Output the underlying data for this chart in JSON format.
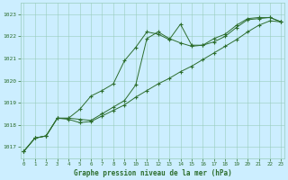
{
  "xlabel": "Graphe pression niveau de la mer (hPa)",
  "ylim": [
    1016.5,
    1023.5
  ],
  "xlim": [
    -0.3,
    23.3
  ],
  "yticks": [
    1017,
    1018,
    1019,
    1020,
    1021,
    1022,
    1023
  ],
  "xticks": [
    0,
    1,
    2,
    3,
    4,
    5,
    6,
    7,
    8,
    9,
    10,
    11,
    12,
    13,
    14,
    15,
    16,
    17,
    18,
    19,
    20,
    21,
    22,
    23
  ],
  "bg_color": "#cceeff",
  "grid_color": "#99ccbb",
  "line_color": "#2d6e2d",
  "series1_x": [
    0,
    1,
    2,
    3,
    4,
    5,
    6,
    7,
    8,
    9,
    10,
    11,
    12,
    13,
    14,
    15,
    16,
    17,
    18,
    19,
    20,
    21,
    22,
    23
  ],
  "series1": [
    1016.8,
    1017.4,
    1017.5,
    1018.3,
    1018.3,
    1018.25,
    1018.2,
    1018.5,
    1018.8,
    1019.1,
    1019.8,
    1021.9,
    1022.2,
    1021.9,
    1021.7,
    1021.55,
    1021.6,
    1021.75,
    1022.0,
    1022.4,
    1022.75,
    1022.8,
    1022.85,
    1022.65
  ],
  "series2": [
    1016.8,
    1017.4,
    1017.5,
    1018.3,
    1018.3,
    1018.7,
    1019.3,
    1019.55,
    1019.85,
    1020.9,
    1021.5,
    1022.2,
    1022.1,
    1021.85,
    1022.55,
    1021.6,
    1021.6,
    1021.9,
    1022.1,
    1022.5,
    1022.8,
    1022.85,
    1022.85,
    1022.65
  ],
  "series3": [
    1016.8,
    1017.4,
    1017.5,
    1018.3,
    1018.25,
    1018.1,
    1018.15,
    1018.4,
    1018.65,
    1018.9,
    1019.25,
    1019.55,
    1019.85,
    1020.1,
    1020.4,
    1020.65,
    1020.95,
    1021.25,
    1021.55,
    1021.85,
    1022.2,
    1022.5,
    1022.7,
    1022.65
  ],
  "figsize": [
    3.2,
    2.0
  ],
  "dpi": 100
}
